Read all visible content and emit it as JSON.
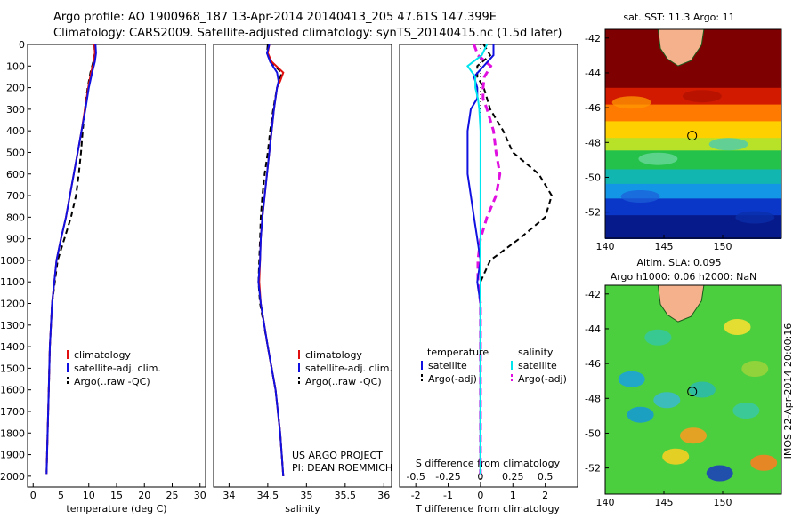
{
  "header": {
    "line1": "Argo profile: AO 1900968_187 13-Apr-2014 20140413_205 47.61S 147.399E",
    "line2": "Climatology: CARS2009. Satellite-adjusted climatology: synTS_20140415.nc (1.5d later)"
  },
  "colors": {
    "climatology": "#e01010",
    "satellite": "#1010e0",
    "argo": "#000000",
    "sal_satellite": "#00e5ee",
    "sal_argo": "#e010e0",
    "land": "#f5b08c",
    "marker": "#000000"
  },
  "chart_data": [
    {
      "type": "line",
      "id": "temperature",
      "xlabel": "temperature (deg C)",
      "ylabel": "",
      "xlim": [
        -1,
        31
      ],
      "ylim": [
        2050,
        0
      ],
      "xticks": [
        "0",
        "5",
        "10",
        "15",
        "20",
        "25",
        "30"
      ],
      "yticks": [
        "0",
        "100",
        "200",
        "300",
        "400",
        "500",
        "600",
        "700",
        "800",
        "900",
        "1000",
        "1100",
        "1200",
        "1300",
        "1400",
        "1500",
        "1600",
        "1700",
        "1800",
        "1900",
        "2000"
      ],
      "y": [
        0,
        40,
        80,
        130,
        200,
        300,
        400,
        500,
        600,
        700,
        800,
        900,
        1000,
        1200,
        1400,
        1600,
        1800,
        1990
      ],
      "series": [
        {
          "name": "climatology",
          "values": [
            11.0,
            11.1,
            10.9,
            10.4,
            9.9,
            9.3,
            8.7,
            8.0,
            7.3,
            6.6,
            5.9,
            5.0,
            4.2,
            3.4,
            3.0,
            2.8,
            2.6,
            2.4
          ]
        },
        {
          "name": "satellite-adj. clim.",
          "values": [
            11.2,
            11.3,
            11.1,
            10.6,
            10.0,
            9.4,
            8.7,
            8.0,
            7.3,
            6.6,
            5.9,
            5.0,
            4.2,
            3.4,
            3.0,
            2.8,
            2.6,
            2.4
          ]
        },
        {
          "name": "Argo(..raw -QC)",
          "values": [
            11.0,
            11.1,
            10.8,
            10.3,
            9.8,
            9.3,
            8.9,
            8.6,
            8.2,
            7.7,
            6.8,
            5.6,
            4.4,
            3.4,
            3.0,
            2.8,
            2.6,
            2.4
          ]
        }
      ],
      "legend": [
        "climatology",
        "satellite-adj. clim.",
        "Argo(..raw -QC)"
      ]
    },
    {
      "type": "line",
      "id": "salinity",
      "xlabel": "salinity",
      "xlim": [
        33.8,
        36.1
      ],
      "ylim": [
        2050,
        0
      ],
      "xticks": [
        "34",
        "34.5",
        "35",
        "35.5",
        "36"
      ],
      "y": [
        0,
        40,
        80,
        130,
        170,
        200,
        300,
        400,
        500,
        600,
        700,
        800,
        900,
        1000,
        1100,
        1200,
        1400,
        1600,
        1800,
        2000
      ],
      "series": [
        {
          "name": "climatology",
          "values": [
            34.52,
            34.5,
            34.55,
            34.7,
            34.66,
            34.62,
            34.58,
            34.55,
            34.52,
            34.49,
            34.46,
            34.43,
            34.41,
            34.4,
            34.39,
            34.41,
            34.5,
            34.6,
            34.66,
            34.7
          ]
        },
        {
          "name": "satellite-adj. clim.",
          "values": [
            34.52,
            34.49,
            34.53,
            34.62,
            34.64,
            34.62,
            34.58,
            34.55,
            34.52,
            34.49,
            34.46,
            34.43,
            34.41,
            34.4,
            34.38,
            34.41,
            34.5,
            34.6,
            34.66,
            34.7
          ]
        },
        {
          "name": "Argo(..raw -QC)",
          "values": [
            34.5,
            34.49,
            34.53,
            34.68,
            34.65,
            34.62,
            34.57,
            34.53,
            34.5,
            34.46,
            34.43,
            34.41,
            34.4,
            34.39,
            34.38,
            34.4,
            34.5,
            34.6,
            34.66,
            34.7
          ]
        }
      ],
      "legend": [
        "climatology",
        "satellite-adj. clim.",
        "Argo(..raw -QC)"
      ],
      "annotation": [
        "US ARGO PROJECT",
        "PI: DEAN ROEMMICH"
      ]
    },
    {
      "type": "line",
      "id": "difference",
      "xlabel": "T difference from climatology",
      "top_xlabel": "S difference from climatology",
      "xlim": [
        -2.5,
        3.0
      ],
      "ylim": [
        2050,
        0
      ],
      "xticks": [
        "-2",
        "-1",
        "0",
        "1",
        "2"
      ],
      "top_xticks": [
        "-0.5",
        "-0.25",
        "0",
        "0.25",
        "0.5"
      ],
      "y": [
        0,
        50,
        100,
        150,
        200,
        250,
        300,
        400,
        500,
        600,
        700,
        800,
        900,
        1000,
        1100,
        1200,
        1400,
        1600,
        1800,
        1990
      ],
      "series": [
        {
          "name": "temperature satellite",
          "values": [
            0.4,
            0.4,
            0.1,
            -0.2,
            -0.1,
            -0.1,
            -0.3,
            -0.4,
            -0.4,
            -0.4,
            -0.3,
            -0.2,
            -0.1,
            0,
            -0.1,
            0,
            0,
            0,
            0,
            0
          ]
        },
        {
          "name": "temperature Argo(-adj)",
          "values": [
            0.1,
            0.3,
            -0.1,
            -0.1,
            0.1,
            0.2,
            0.3,
            0.7,
            1.0,
            1.8,
            2.2,
            2.0,
            1.2,
            0.3,
            0,
            0,
            0,
            0,
            0,
            0
          ]
        },
        {
          "name": "salinity satellite",
          "values": [
            0.05,
            0.01,
            -0.1,
            -0.04,
            -0.04,
            -0.02,
            -0.01,
            0,
            0,
            0,
            0,
            0,
            0,
            0,
            0,
            0,
            0,
            0,
            0,
            0
          ]
        },
        {
          "name": "salinity Argo(-adj)",
          "values": [
            -0.05,
            -0.02,
            0.08,
            0.03,
            0.02,
            0.02,
            0.05,
            0.1,
            0.12,
            0.15,
            0.12,
            0.05,
            0,
            -0.02,
            -0.02,
            0,
            0,
            0,
            0,
            0
          ]
        }
      ],
      "legend_headers": [
        "temperature",
        "salinity"
      ],
      "legend": [
        "satellite",
        "Argo(-adj)",
        "satellite",
        "Argo(-adj)"
      ]
    },
    {
      "type": "heatmap",
      "id": "sst-map",
      "title": "sat. SST: 11.3 Argo: 11",
      "xlim": [
        140,
        155
      ],
      "ylim": [
        -53.5,
        -41.5
      ],
      "xticks": [
        "140",
        "145",
        "150"
      ],
      "yticks": [
        "-42",
        "-44",
        "-46",
        "-48",
        "-50",
        "-52"
      ],
      "argo_position": [
        147.4,
        -47.61
      ]
    },
    {
      "type": "heatmap",
      "id": "sla-map",
      "title": "Altim. SLA: 0.095",
      "subtitle": "Argo h1000: 0.06 h2000: NaN",
      "side_label": "IMOS 22-Apr-2014 20:00:16",
      "xlim": [
        140,
        155
      ],
      "ylim": [
        -53.5,
        -41.5
      ],
      "xticks": [
        "140",
        "145",
        "150"
      ],
      "yticks": [
        "-42",
        "-44",
        "-46",
        "-48",
        "-50",
        "-52"
      ],
      "argo_position": [
        147.4,
        -47.61
      ]
    }
  ]
}
